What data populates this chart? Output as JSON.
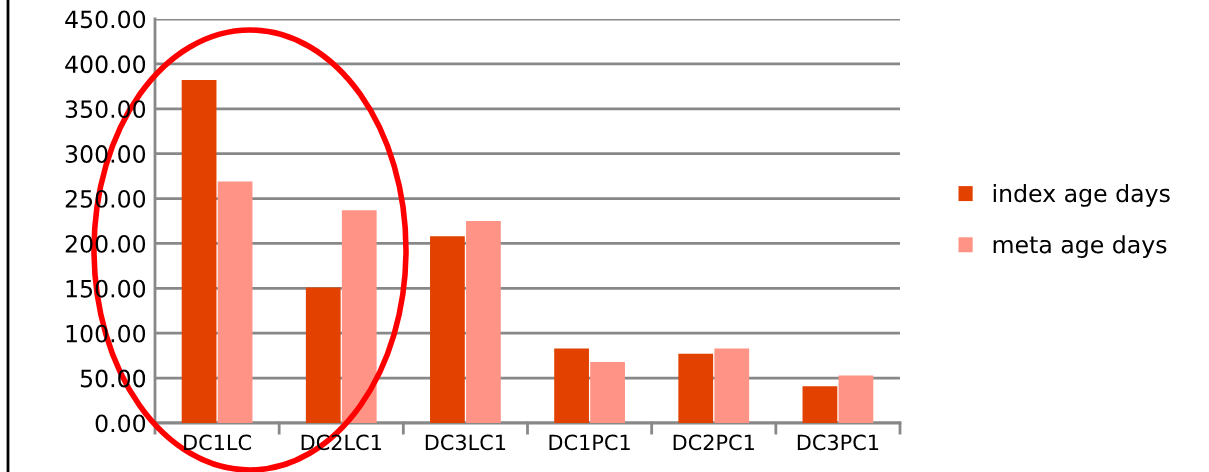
{
  "chart_data": {
    "type": "bar",
    "categories": [
      "DC1LC",
      "DC2LC1",
      "DC3LC1",
      "DC1PC1",
      "DC2PC1",
      "DC3PC1"
    ],
    "series": [
      {
        "name": "index age days",
        "color": "#e24100",
        "values": [
          382,
          151,
          208,
          83,
          77,
          41
        ]
      },
      {
        "name": "meta age days",
        "color": "#ff9486",
        "values": [
          269,
          237,
          225,
          68,
          83,
          53
        ]
      }
    ],
    "ylim": [
      0,
      450
    ],
    "yticks": [
      {
        "value": 0,
        "label": "0.00"
      },
      {
        "value": 50,
        "label": "50.00"
      },
      {
        "value": 100,
        "label": "100.00"
      },
      {
        "value": 150,
        "label": "150.00"
      },
      {
        "value": 200,
        "label": "200.00"
      },
      {
        "value": 250,
        "label": "250.00"
      },
      {
        "value": 300,
        "label": "300.00"
      },
      {
        "value": 350,
        "label": "350.00"
      },
      {
        "value": 400,
        "label": "400.00"
      },
      {
        "value": 450,
        "label": "450.00"
      }
    ],
    "grid": "y",
    "legend": "right"
  }
}
